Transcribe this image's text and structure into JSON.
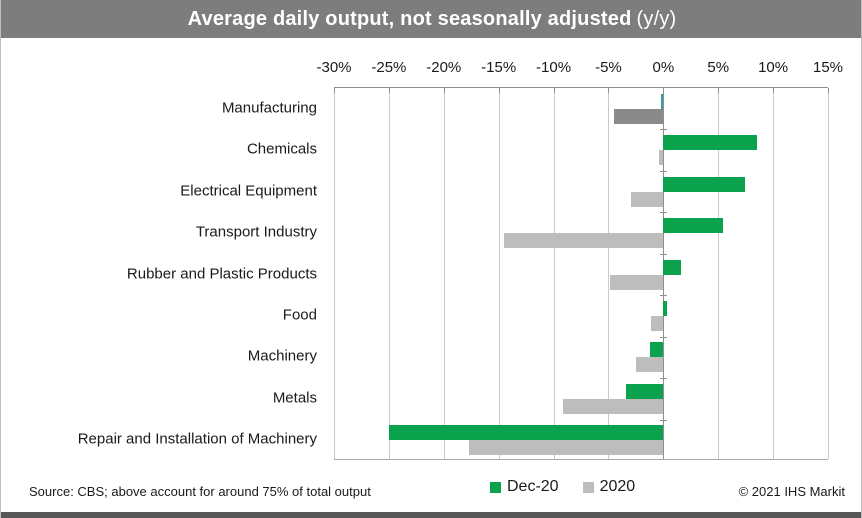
{
  "title": {
    "main": "Average daily output, not seasonally adjusted",
    "suffix": "(y/y)"
  },
  "footer": {
    "source": "Source: CBS; above account for around 75% of total output",
    "copyright": "© 2021 IHS Markit"
  },
  "colors": {
    "title_bar": "#7d7d7d",
    "green": "#0ba24d",
    "gray": "#bdbdbd",
    "gridline": "#c9c9c9",
    "axis": "#8f8f8f",
    "bottom_strip": "#565656"
  },
  "chart_data": {
    "type": "bar",
    "orientation": "horizontal",
    "title": "Average daily output, not seasonally adjusted (y/y)",
    "categories": [
      "Manufacturing",
      "Chemicals",
      "Electrical Equipment",
      "Transport Industry",
      "Rubber and Plastic Products",
      "Food",
      "Machinery",
      "Metals",
      "Repair and Installation of Machinery"
    ],
    "series": [
      {
        "name": "Dec-20",
        "color": "#0ba24d",
        "values": [
          -0.2,
          8.5,
          7.4,
          5.4,
          1.6,
          0.3,
          -1.2,
          -3.4,
          -25.0
        ]
      },
      {
        "name": "2020",
        "color": "#bdbdbd",
        "values": [
          -4.5,
          -0.4,
          -2.9,
          -14.5,
          -4.9,
          -1.1,
          -2.5,
          -9.1,
          -17.7
        ]
      }
    ],
    "bar_color_overrides": [
      {
        "category": "Manufacturing",
        "series": "Dec-20",
        "color": "#2f9fa3"
      },
      {
        "category": "Manufacturing",
        "series": "2020",
        "color": "#8a8a8a"
      }
    ],
    "xlim": [
      -30,
      15
    ],
    "tick_step": 5,
    "tick_labels": [
      "-30%",
      "-25%",
      "-20%",
      "-15%",
      "-10%",
      "-5%",
      "0%",
      "5%",
      "10%",
      "15%"
    ],
    "unit": "percent",
    "grid": true,
    "legend_position": "bottom"
  }
}
